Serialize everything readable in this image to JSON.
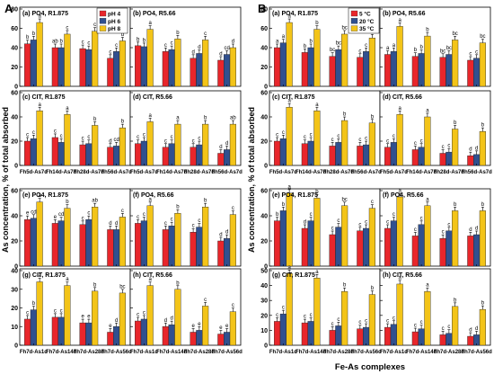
{
  "figure": {
    "letter_a": "A",
    "letter_b": "B",
    "y_axis_label": "As concentration, % of total absorbed",
    "x_axis_label": "Fe-As complexes",
    "legend_a": [
      "pH 4",
      "pH 6",
      "pH 8"
    ],
    "legend_b": [
      "5 °C",
      "20 °C",
      "35 °C"
    ],
    "colors_a": [
      "#e8262b",
      "#30508f",
      "#f3c418"
    ],
    "colors_b": [
      "#e8262b",
      "#30508f",
      "#f3c418"
    ]
  },
  "chart_data": [
    {
      "id": "A-a",
      "type": "bar",
      "title": "(a) PO4, R1.875",
      "ylim": [
        0,
        80
      ],
      "yticks": [
        0,
        20,
        40,
        60,
        80
      ],
      "show_yticks": true,
      "categories": [
        "Fh5d-As7d",
        "Fh14d-As7d",
        "Fh28d-As7d",
        "Fh56d-As7d"
      ],
      "show_xticks": false,
      "series": [
        {
          "name": "pH 4",
          "values": [
            44,
            40,
            39,
            29
          ]
        },
        {
          "name": "pH 6",
          "values": [
            48,
            40,
            38,
            36
          ]
        },
        {
          "name": "pH 8",
          "values": [
            66,
            54,
            57,
            47
          ]
        }
      ],
      "letters": [
        [
          "b",
          "b",
          "a"
        ],
        [
          "ab",
          "b",
          "c"
        ],
        [
          "c",
          "c",
          "c"
        ],
        [
          "c",
          "c",
          "d"
        ]
      ]
    },
    {
      "id": "A-b",
      "type": "bar",
      "title": "(b) PO4, R5.66",
      "ylim": [
        0,
        80
      ],
      "yticks": [
        0,
        20,
        40,
        60,
        80
      ],
      "show_yticks": false,
      "categories": [
        "Fh5d-As7d",
        "Fh14d-As7d",
        "Fh28d-As7d",
        "Fh56d-As7d"
      ],
      "show_xticks": false,
      "series": [
        {
          "name": "pH 4",
          "values": [
            42,
            36,
            29,
            27
          ]
        },
        {
          "name": "pH 6",
          "values": [
            41,
            38,
            34,
            33
          ]
        },
        {
          "name": "pH 8",
          "values": [
            59,
            49,
            48,
            40
          ]
        }
      ],
      "letters": [
        [
          "b",
          "b",
          "a"
        ],
        [
          "c",
          "c",
          "b"
        ],
        [
          "d",
          "d",
          "c"
        ],
        [
          "d",
          "cd",
          "d"
        ]
      ]
    },
    {
      "id": "A-c",
      "type": "bar",
      "title": "(c) CIT, R1.875",
      "ylim": [
        0,
        60
      ],
      "yticks": [
        0,
        20,
        40,
        60
      ],
      "show_yticks": true,
      "categories": [
        "Fh5d-As7d",
        "Fh14d-As7d",
        "Fh28d-As7d",
        "Fh56d-As7d"
      ],
      "show_xticks": true,
      "series": [
        {
          "name": "pH 4",
          "values": [
            20,
            23,
            17,
            15
          ]
        },
        {
          "name": "pH 6",
          "values": [
            22,
            19,
            18,
            16
          ]
        },
        {
          "name": "pH 8",
          "values": [
            45,
            42,
            33,
            31
          ]
        }
      ],
      "letters": [
        [
          "c",
          "c",
          "a"
        ],
        [
          "c",
          "c",
          "a"
        ],
        [
          "c",
          "c",
          "b"
        ],
        [
          "d",
          "cd",
          "b"
        ]
      ]
    },
    {
      "id": "A-d",
      "type": "bar",
      "title": "(d) CIT, R5.66",
      "ylim": [
        0,
        60
      ],
      "yticks": [
        0,
        20,
        40,
        60
      ],
      "show_yticks": false,
      "categories": [
        "Fh5d-As7d",
        "Fh14d-As7d",
        "Fh28d-As7d",
        "Fh56d-As7d"
      ],
      "show_xticks": true,
      "series": [
        {
          "name": "pH 4",
          "values": [
            18,
            15,
            15,
            10
          ]
        },
        {
          "name": "pH 6",
          "values": [
            20,
            18,
            17,
            13
          ]
        },
        {
          "name": "pH 8",
          "values": [
            36,
            34,
            34,
            34
          ]
        }
      ],
      "letters": [
        [
          "c",
          "c",
          "a"
        ],
        [
          "c",
          "c",
          "a"
        ],
        [
          "c",
          "c",
          "b"
        ],
        [
          "d",
          "d",
          "ab"
        ]
      ]
    },
    {
      "id": "A-e",
      "type": "bar",
      "title": "(e) PO4, R1.875",
      "ylim": [
        0,
        60
      ],
      "yticks": [
        0,
        20,
        40,
        60
      ],
      "show_yticks": true,
      "categories": [
        "Fh7d-As1d",
        "Fh7d-As14d",
        "Fh7d-As28d",
        "Fh7d-As56d"
      ],
      "show_xticks": false,
      "series": [
        {
          "name": "pH 4",
          "values": [
            37,
            34,
            33,
            29
          ]
        },
        {
          "name": "pH 6",
          "values": [
            38,
            36,
            37,
            29
          ]
        },
        {
          "name": "pH 8",
          "values": [
            51,
            46,
            47,
            39
          ]
        }
      ],
      "letters": [
        [
          "e",
          "cd",
          "a"
        ],
        [
          "e",
          "cd",
          "b"
        ],
        [
          "c",
          "c",
          "ab"
        ],
        [
          "d",
          "d",
          "c"
        ]
      ]
    },
    {
      "id": "A-f",
      "type": "bar",
      "title": "(f) PO4, R5.66",
      "ylim": [
        0,
        60
      ],
      "yticks": [
        0,
        20,
        40,
        60
      ],
      "show_yticks": false,
      "categories": [
        "Fh7d-As1d",
        "Fh7d-As14d",
        "Fh7d-As28d",
        "Fh7d-As56d"
      ],
      "show_xticks": false,
      "series": [
        {
          "name": "pH 4",
          "values": [
            34,
            29,
            27,
            20
          ]
        },
        {
          "name": "pH 6",
          "values": [
            36,
            32,
            31,
            22
          ]
        },
        {
          "name": "pH 8",
          "values": [
            48,
            42,
            47,
            41
          ]
        }
      ],
      "letters": [
        [
          "c",
          "c",
          "a"
        ],
        [
          "c",
          "c",
          "b"
        ],
        [
          "c",
          "c",
          "b"
        ],
        [
          "d",
          "d",
          "c"
        ]
      ]
    },
    {
      "id": "A-g",
      "type": "bar",
      "title": "(g) CIT, R1.875",
      "ylim": [
        0,
        40
      ],
      "yticks": [
        0,
        10,
        20,
        30,
        40
      ],
      "show_yticks": true,
      "categories": [
        "Fh7d-As1d",
        "Fh7d-As14d",
        "Fh7d-As28d",
        "Fh7d-As56d"
      ],
      "show_xticks": true,
      "series": [
        {
          "name": "pH 4",
          "values": [
            14,
            15,
            12,
            7
          ]
        },
        {
          "name": "pH 6",
          "values": [
            19,
            15,
            12,
            10
          ]
        },
        {
          "name": "pH 8",
          "values": [
            34,
            32,
            29,
            28
          ]
        }
      ],
      "letters": [
        [
          "c",
          "b",
          "a"
        ],
        [
          "c",
          "c",
          "a"
        ],
        [
          "e",
          "e",
          "b"
        ],
        [
          "e",
          "d",
          "bc"
        ]
      ]
    },
    {
      "id": "A-h",
      "type": "bar",
      "title": "(h) CIT, R5.66",
      "ylim": [
        0,
        40
      ],
      "yticks": [
        0,
        10,
        20,
        30,
        40
      ],
      "show_yticks": false,
      "categories": [
        "Fh7d-As1d",
        "Fh7d-As14d",
        "Fh7d-As28d",
        "Fh7d-As56d"
      ],
      "show_xticks": true,
      "series": [
        {
          "name": "pH 4",
          "values": [
            13,
            10,
            7,
            6
          ]
        },
        {
          "name": "pH 6",
          "values": [
            14,
            11,
            8,
            7
          ]
        },
        {
          "name": "pH 8",
          "values": [
            32,
            30,
            21,
            18
          ]
        }
      ],
      "letters": [
        [
          "c",
          "c",
          "a"
        ],
        [
          "d",
          "d",
          "b"
        ],
        [
          "e",
          "e",
          "c"
        ],
        [
          "e",
          "e",
          "c"
        ]
      ]
    },
    {
      "id": "B-a",
      "type": "bar",
      "title": "(a) PO4, R1.875",
      "ylim": [
        0,
        80
      ],
      "yticks": [
        0,
        20,
        40,
        60,
        80
      ],
      "show_yticks": true,
      "categories": [
        "Fh5d-As7d",
        "Fh14d-As7d",
        "Fh28d-As7d",
        "Fh56d-As7d"
      ],
      "show_xticks": false,
      "series": [
        {
          "name": "5 °C",
          "values": [
            40,
            35,
            31,
            30
          ]
        },
        {
          "name": "20 °C",
          "values": [
            45,
            40,
            38,
            36
          ]
        },
        {
          "name": "35 °C",
          "values": [
            66,
            59,
            54,
            50
          ]
        }
      ],
      "letters": [
        [
          "a",
          "a",
          "a"
        ],
        [
          "b",
          "b",
          "b"
        ],
        [
          "bc",
          "bc",
          "bc"
        ],
        [
          "c",
          "c",
          "c"
        ]
      ]
    },
    {
      "id": "B-b",
      "type": "bar",
      "title": "(b) PO4, R5.66",
      "ylim": [
        0,
        80
      ],
      "yticks": [
        0,
        20,
        40,
        60,
        80
      ],
      "show_yticks": false,
      "categories": [
        "Fh5d-As7d",
        "Fh14d-As7d",
        "Fh28d-As7d",
        "Fh56d-As7d"
      ],
      "show_xticks": false,
      "series": [
        {
          "name": "5 °C",
          "values": [
            33,
            31,
            30,
            27
          ]
        },
        {
          "name": "20 °C",
          "values": [
            36,
            34,
            33,
            29
          ]
        },
        {
          "name": "35 °C",
          "values": [
            62,
            52,
            48,
            45
          ]
        }
      ],
      "letters": [
        [
          "a",
          "a",
          "a"
        ],
        [
          "b",
          "b",
          "b"
        ],
        [
          "bc",
          "bc",
          "bc"
        ],
        [
          "c",
          "c",
          "bc"
        ]
      ]
    },
    {
      "id": "B-c",
      "type": "bar",
      "title": "(c) CIT, R1.875",
      "ylim": [
        0,
        60
      ],
      "yticks": [
        0,
        20,
        40,
        60
      ],
      "show_yticks": true,
      "categories": [
        "Fh5d-As7d",
        "Fh14d-As7d",
        "Fh28d-As7d",
        "Fh56d-As7d"
      ],
      "show_xticks": true,
      "series": [
        {
          "name": "5 °C",
          "values": [
            20,
            18,
            16,
            16
          ]
        },
        {
          "name": "20 °C",
          "values": [
            22,
            20,
            19,
            17
          ]
        },
        {
          "name": "35 °C",
          "values": [
            48,
            45,
            37,
            35
          ]
        }
      ],
      "letters": [
        [
          "c",
          "c",
          "a"
        ],
        [
          "c",
          "c",
          "a"
        ],
        [
          "c",
          "c",
          "b"
        ],
        [
          "c",
          "c",
          "b"
        ]
      ]
    },
    {
      "id": "B-d",
      "type": "bar",
      "title": "(d) CIT, R5.66",
      "ylim": [
        0,
        60
      ],
      "yticks": [
        0,
        20,
        40,
        60
      ],
      "show_yticks": false,
      "categories": [
        "Fh5d-As7d",
        "Fh14d-As7d",
        "Fh28d-As7d",
        "Fh56d-As7d"
      ],
      "show_xticks": true,
      "series": [
        {
          "name": "5 °C",
          "values": [
            15,
            13,
            10,
            8
          ]
        },
        {
          "name": "20 °C",
          "values": [
            19,
            15,
            11,
            9
          ]
        },
        {
          "name": "35 °C",
          "values": [
            42,
            40,
            30,
            28
          ]
        }
      ],
      "letters": [
        [
          "c",
          "c",
          "a"
        ],
        [
          "c",
          "c",
          "a"
        ],
        [
          "c",
          "c",
          "b"
        ],
        [
          "d",
          "d",
          "b"
        ]
      ]
    },
    {
      "id": "B-e",
      "type": "bar",
      "title": "(e) PO4, R1.875",
      "ylim": [
        0,
        60
      ],
      "yticks": [
        0,
        20,
        40,
        60
      ],
      "show_yticks": true,
      "categories": [
        "Fh7d-As1d",
        "Fh7d-As14d",
        "Fh7d-As28d",
        "Fh7d-As56d"
      ],
      "show_xticks": false,
      "series": [
        {
          "name": "5 °C",
          "values": [
            36,
            30,
            25,
            28
          ]
        },
        {
          "name": "20 °C",
          "values": [
            44,
            36,
            31,
            30
          ]
        },
        {
          "name": "35 °C",
          "values": [
            58,
            54,
            48,
            46
          ]
        }
      ],
      "letters": [
        [
          "b",
          "b",
          "a"
        ],
        [
          "d",
          "c",
          "b"
        ],
        [
          "c",
          "c",
          "bc"
        ],
        [
          "c",
          "c",
          "c"
        ]
      ]
    },
    {
      "id": "B-f",
      "type": "bar",
      "title": "(f) PO4, R5.66",
      "ylim": [
        0,
        60
      ],
      "yticks": [
        0,
        20,
        40,
        60
      ],
      "show_yticks": false,
      "categories": [
        "Fh7d-As1d",
        "Fh7d-As14d",
        "Fh7d-As28d",
        "Fh7d-As56d"
      ],
      "show_xticks": false,
      "series": [
        {
          "name": "5 °C",
          "values": [
            30,
            24,
            22,
            24
          ]
        },
        {
          "name": "20 °C",
          "values": [
            36,
            33,
            28,
            25
          ]
        },
        {
          "name": "35 °C",
          "values": [
            55,
            48,
            44,
            44
          ]
        }
      ],
      "letters": [
        [
          "c",
          "c",
          "a"
        ],
        [
          "c",
          "c",
          "a"
        ],
        [
          "c",
          "c",
          "b"
        ],
        [
          "d",
          "d",
          "b"
        ]
      ]
    },
    {
      "id": "B-g",
      "type": "bar",
      "title": "(g) CIT, R1.875",
      "ylim": [
        0,
        50
      ],
      "yticks": [
        0,
        10,
        20,
        30,
        40,
        50
      ],
      "show_yticks": true,
      "categories": [
        "Fh7d-As1d",
        "Fh7d-As14d",
        "Fh7d-As28d",
        "Fh7d-As56d"
      ],
      "show_xticks": true,
      "series": [
        {
          "name": "5 °C",
          "values": [
            16,
            15,
            10,
            11
          ]
        },
        {
          "name": "20 °C",
          "values": [
            21,
            16,
            13,
            12
          ]
        },
        {
          "name": "35 °C",
          "values": [
            48,
            45,
            36,
            34
          ]
        }
      ],
      "letters": [
        [
          "c",
          "c",
          "a"
        ],
        [
          "c",
          "c",
          "a"
        ],
        [
          "c",
          "c",
          "b"
        ],
        [
          "c",
          "c",
          "b"
        ]
      ]
    },
    {
      "id": "B-h",
      "type": "bar",
      "title": "(h) CIT, R5.66",
      "ylim": [
        0,
        50
      ],
      "yticks": [
        0,
        10,
        20,
        30,
        40,
        50
      ],
      "show_yticks": false,
      "categories": [
        "Fh7d-As1d",
        "Fh7d-As14d",
        "Fh7d-As28d",
        "Fh7d-As56d"
      ],
      "show_xticks": true,
      "series": [
        {
          "name": "5 °C",
          "values": [
            12,
            9,
            7,
            6
          ]
        },
        {
          "name": "20 °C",
          "values": [
            14,
            11,
            8,
            7
          ]
        },
        {
          "name": "35 °C",
          "values": [
            41,
            36,
            26,
            24
          ]
        }
      ],
      "letters": [
        [
          "c",
          "c",
          "a"
        ],
        [
          "c",
          "c",
          "a"
        ],
        [
          "c",
          "c",
          "b"
        ],
        [
          "d",
          "d",
          "b"
        ]
      ]
    }
  ]
}
